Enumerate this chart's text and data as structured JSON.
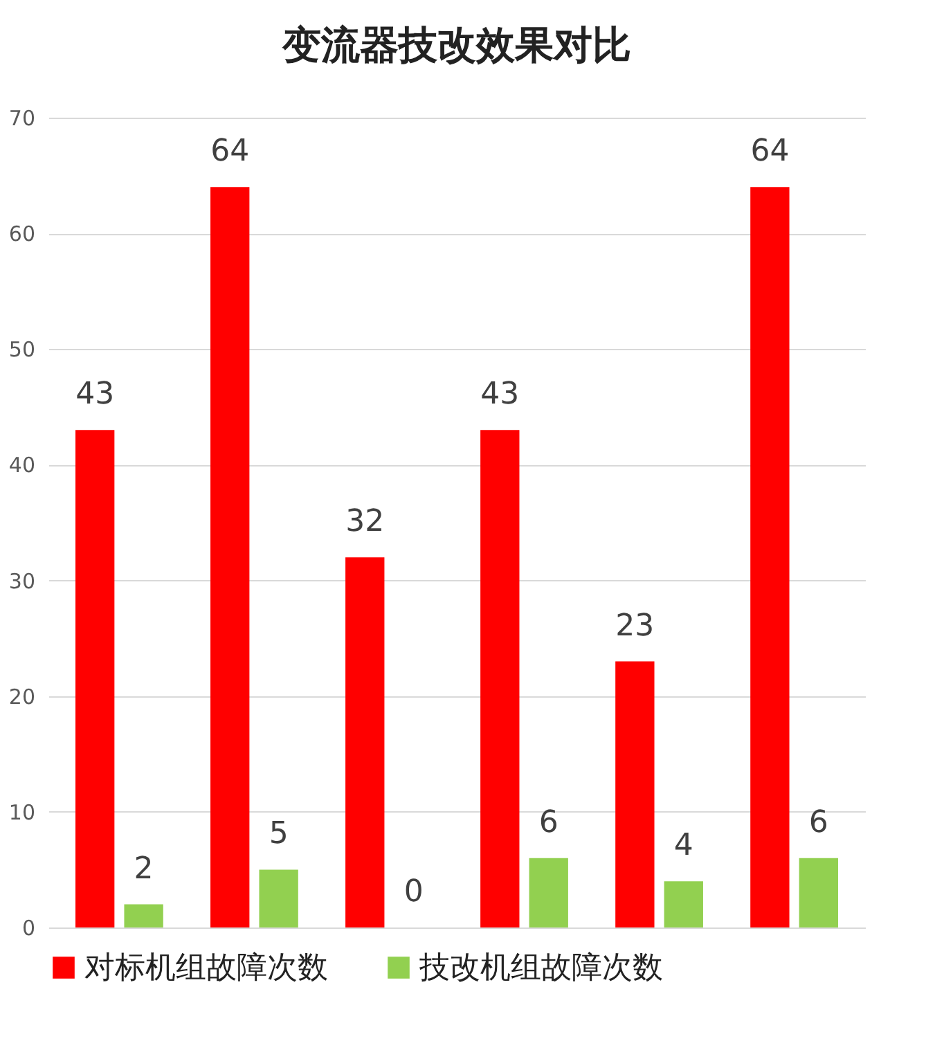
{
  "chart_data": {
    "type": "bar",
    "title": "变流器技改效果对比",
    "categories": [
      null,
      null,
      null,
      null,
      null,
      null
    ],
    "series": [
      {
        "name": "对标机组故障次数",
        "color": "#ff0000",
        "values": [
          43,
          64,
          32,
          43,
          23,
          64
        ]
      },
      {
        "name": "技改机组故障次数",
        "color": "#92d050",
        "values": [
          2,
          5,
          0,
          6,
          4,
          6
        ]
      }
    ],
    "ylim": [
      0,
      70
    ],
    "yticks": [
      0,
      10,
      20,
      30,
      40,
      50,
      60,
      70
    ],
    "grid": "y",
    "legend": "bottom",
    "data_labels": true,
    "tick_labels": "y"
  }
}
